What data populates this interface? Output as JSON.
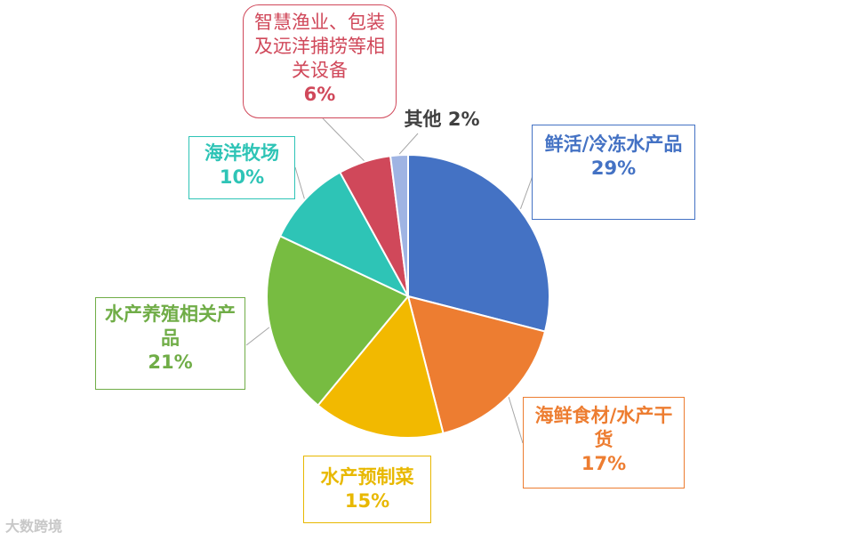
{
  "chart_data": {
    "type": "pie",
    "categories": [
      "鲜活/冷冻水产品",
      "海鲜食材/水产干货",
      "水产预制菜",
      "水产养殖相关产品",
      "海洋牧场",
      "智慧渔业、包装及远洋捕捞等相关设备",
      "其他"
    ],
    "values": [
      29,
      17,
      15,
      21,
      10,
      6,
      2
    ],
    "colors": [
      "#4472C4",
      "#ED7D31",
      "#F2B900",
      "#77BC41",
      "#2EC4B6",
      "#D0485A",
      "#9FB4E3"
    ]
  },
  "labels": {
    "fresh": {
      "name": "鲜活/冷冻水产品",
      "pct": "29%"
    },
    "seafood": {
      "name": "海鲜食材/水产干货",
      "pct": "17%"
    },
    "prep": {
      "name": "水产预制菜",
      "pct": "15%"
    },
    "aqua": {
      "name": "水产养殖相关产品",
      "pct": "21%"
    },
    "ranch": {
      "name": "海洋牧场",
      "pct": "10%"
    },
    "smart": {
      "name": "智慧渔业、包装及远洋捕捞等相关设备",
      "pct": "6%"
    },
    "other": {
      "name": "其他",
      "pct": "2%"
    }
  },
  "watermark": "大数跨境"
}
